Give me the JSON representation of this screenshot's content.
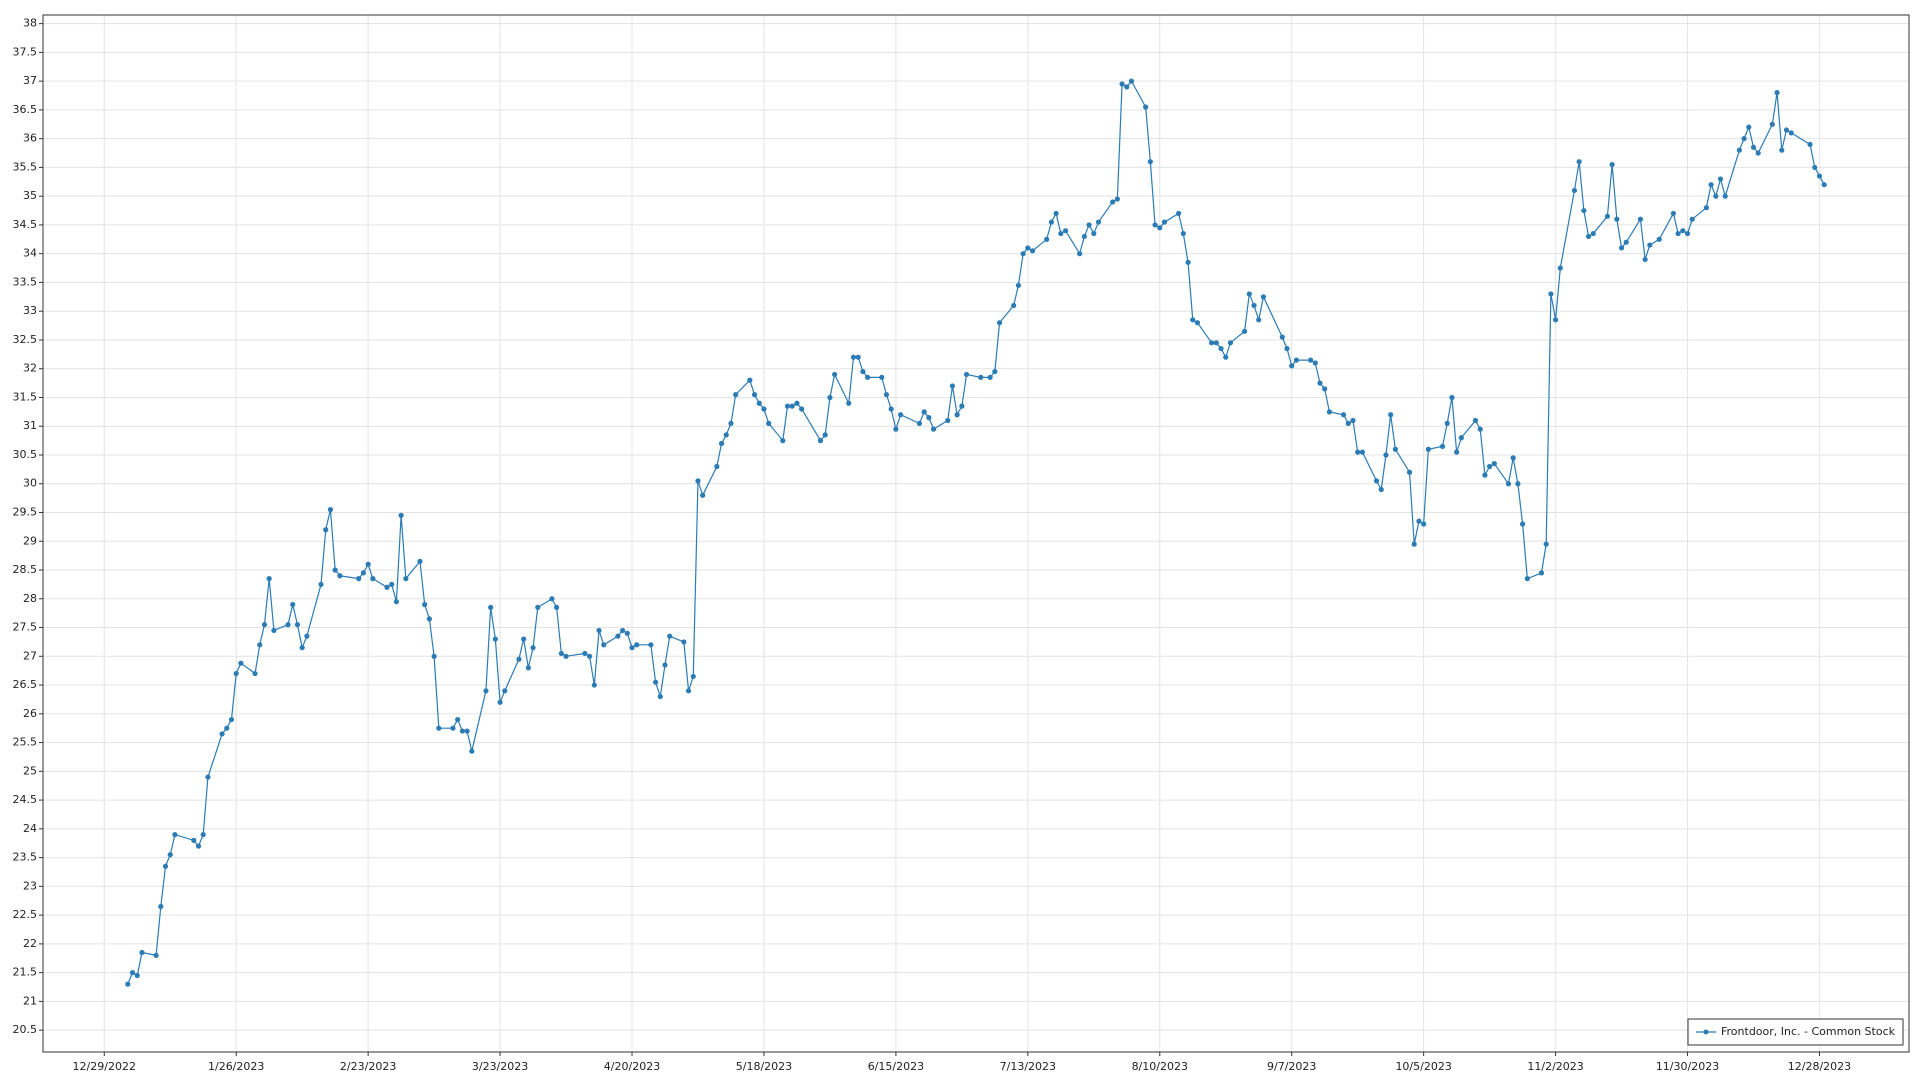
{
  "chart_data": {
    "type": "line",
    "x": [
      "1/3/2023",
      "1/4/2023",
      "1/5/2023",
      "1/6/2023",
      "1/9/2023",
      "1/10/2023",
      "1/11/2023",
      "1/12/2023",
      "1/13/2023",
      "1/17/2023",
      "1/18/2023",
      "1/19/2023",
      "1/20/2023",
      "1/23/2023",
      "1/24/2023",
      "1/25/2023",
      "1/26/2023",
      "1/27/2023",
      "1/30/2023",
      "1/31/2023",
      "2/1/2023",
      "2/2/2023",
      "2/3/2023",
      "2/6/2023",
      "2/7/2023",
      "2/8/2023",
      "2/9/2023",
      "2/10/2023",
      "2/13/2023",
      "2/14/2023",
      "2/15/2023",
      "2/16/2023",
      "2/17/2023",
      "2/21/2023",
      "2/22/2023",
      "2/23/2023",
      "2/24/2023",
      "2/27/2023",
      "2/28/2023",
      "3/1/2023",
      "3/2/2023",
      "3/3/2023",
      "3/6/2023",
      "3/7/2023",
      "3/8/2023",
      "3/9/2023",
      "3/10/2023",
      "3/13/2023",
      "3/14/2023",
      "3/15/2023",
      "3/16/2023",
      "3/17/2023",
      "3/20/2023",
      "3/21/2023",
      "3/22/2023",
      "3/23/2023",
      "3/24/2023",
      "3/27/2023",
      "3/28/2023",
      "3/29/2023",
      "3/30/2023",
      "3/31/2023",
      "4/3/2023",
      "4/4/2023",
      "4/5/2023",
      "4/6/2023",
      "4/10/2023",
      "4/11/2023",
      "4/12/2023",
      "4/13/2023",
      "4/14/2023",
      "4/17/2023",
      "4/18/2023",
      "4/19/2023",
      "4/20/2023",
      "4/21/2023",
      "4/24/2023",
      "4/25/2023",
      "4/26/2023",
      "4/27/2023",
      "4/28/2023",
      "5/1/2023",
      "5/2/2023",
      "5/3/2023",
      "5/4/2023",
      "5/5/2023",
      "5/8/2023",
      "5/9/2023",
      "5/10/2023",
      "5/11/2023",
      "5/12/2023",
      "5/15/2023",
      "5/16/2023",
      "5/17/2023",
      "5/18/2023",
      "5/19/2023",
      "5/22/2023",
      "5/23/2023",
      "5/24/2023",
      "5/25/2023",
      "5/26/2023",
      "5/30/2023",
      "5/31/2023",
      "6/1/2023",
      "6/2/2023",
      "6/5/2023",
      "6/6/2023",
      "6/7/2023",
      "6/8/2023",
      "6/9/2023",
      "6/12/2023",
      "6/13/2023",
      "6/14/2023",
      "6/15/2023",
      "6/16/2023",
      "6/20/2023",
      "6/21/2023",
      "6/22/2023",
      "6/23/2023",
      "6/26/2023",
      "6/27/2023",
      "6/28/2023",
      "6/29/2023",
      "6/30/2023",
      "7/3/2023",
      "7/5/2023",
      "7/6/2023",
      "7/7/2023",
      "7/10/2023",
      "7/11/2023",
      "7/12/2023",
      "7/13/2023",
      "7/14/2023",
      "7/17/2023",
      "7/18/2023",
      "7/19/2023",
      "7/20/2023",
      "7/21/2023",
      "7/24/2023",
      "7/25/2023",
      "7/26/2023",
      "7/27/2023",
      "7/28/2023",
      "7/31/2023",
      "8/1/2023",
      "8/2/2023",
      "8/3/2023",
      "8/4/2023",
      "8/7/2023",
      "8/8/2023",
      "8/9/2023",
      "8/10/2023",
      "8/11/2023",
      "8/14/2023",
      "8/15/2023",
      "8/16/2023",
      "8/17/2023",
      "8/18/2023",
      "8/21/2023",
      "8/22/2023",
      "8/23/2023",
      "8/24/2023",
      "8/25/2023",
      "8/28/2023",
      "8/29/2023",
      "8/30/2023",
      "8/31/2023",
      "9/1/2023",
      "9/5/2023",
      "9/6/2023",
      "9/7/2023",
      "9/8/2023",
      "9/11/2023",
      "9/12/2023",
      "9/13/2023",
      "9/14/2023",
      "9/15/2023",
      "9/18/2023",
      "9/19/2023",
      "9/20/2023",
      "9/21/2023",
      "9/22/2023",
      "9/25/2023",
      "9/26/2023",
      "9/27/2023",
      "9/28/2023",
      "9/29/2023",
      "10/2/2023",
      "10/3/2023",
      "10/4/2023",
      "10/5/2023",
      "10/6/2023",
      "10/9/2023",
      "10/10/2023",
      "10/11/2023",
      "10/12/2023",
      "10/13/2023",
      "10/16/2023",
      "10/17/2023",
      "10/18/2023",
      "10/19/2023",
      "10/20/2023",
      "10/23/2023",
      "10/24/2023",
      "10/25/2023",
      "10/26/2023",
      "10/27/2023",
      "10/30/2023",
      "10/31/2023",
      "11/1/2023",
      "11/2/2023",
      "11/3/2023",
      "11/6/2023",
      "11/7/2023",
      "11/8/2023",
      "11/9/2023",
      "11/10/2023",
      "11/13/2023",
      "11/14/2023",
      "11/15/2023",
      "11/16/2023",
      "11/17/2023",
      "11/20/2023",
      "11/21/2023",
      "11/22/2023",
      "11/24/2023",
      "11/27/2023",
      "11/28/2023",
      "11/29/2023",
      "11/30/2023",
      "12/1/2023",
      "12/4/2023",
      "12/5/2023",
      "12/6/2023",
      "12/7/2023",
      "12/8/2023",
      "12/11/2023",
      "12/12/2023",
      "12/13/2023",
      "12/14/2023",
      "12/15/2023",
      "12/18/2023",
      "12/19/2023",
      "12/20/2023",
      "12/21/2023",
      "12/22/2023",
      "12/26/2023",
      "12/27/2023",
      "12/28/2023",
      "12/29/2023"
    ],
    "series": [
      {
        "name": "Frontdoor, Inc. - Common Stock",
        "color": "#2b7bb5",
        "values": [
          21.3,
          21.5,
          21.45,
          21.85,
          21.8,
          22.65,
          23.35,
          23.55,
          23.9,
          23.8,
          23.7,
          23.9,
          24.9,
          25.65,
          25.75,
          25.9,
          26.7,
          26.88,
          26.7,
          27.2,
          27.55,
          28.35,
          27.45,
          27.55,
          27.9,
          27.55,
          27.15,
          27.35,
          28.25,
          29.2,
          29.55,
          28.5,
          28.4,
          28.35,
          28.45,
          28.6,
          28.35,
          28.2,
          28.25,
          27.95,
          29.45,
          28.35,
          28.65,
          27.9,
          27.65,
          27.0,
          25.75,
          25.75,
          25.9,
          25.7,
          25.7,
          25.35,
          26.4,
          27.85,
          27.3,
          26.2,
          26.4,
          26.95,
          27.3,
          26.8,
          27.15,
          27.85,
          28.0,
          27.85,
          27.05,
          27.0,
          27.05,
          27.0,
          26.5,
          27.45,
          27.2,
          27.35,
          27.45,
          27.4,
          27.15,
          27.2,
          27.2,
          26.55,
          26.3,
          26.85,
          27.35,
          27.25,
          26.4,
          26.65,
          30.05,
          29.8,
          30.3,
          30.7,
          30.85,
          31.05,
          31.55,
          31.8,
          31.55,
          31.4,
          31.3,
          31.05,
          30.75,
          31.35,
          31.35,
          31.4,
          31.3,
          30.75,
          30.85,
          31.5,
          31.9,
          31.4,
          32.2,
          32.2,
          31.95,
          31.85,
          31.85,
          31.55,
          31.3,
          30.95,
          31.2,
          31.05,
          31.25,
          31.15,
          30.95,
          31.1,
          31.7,
          31.2,
          31.35,
          31.9,
          31.85,
          31.85,
          31.95,
          32.8,
          33.1,
          33.45,
          34.0,
          34.1,
          34.05,
          34.25,
          34.55,
          34.7,
          34.35,
          34.4,
          34.0,
          34.3,
          34.5,
          34.35,
          34.55,
          34.9,
          34.95,
          36.95,
          36.9,
          37.0,
          36.55,
          35.6,
          34.5,
          34.45,
          34.55,
          34.7,
          34.35,
          33.85,
          32.85,
          32.8,
          32.45,
          32.45,
          32.35,
          32.2,
          32.45,
          32.65,
          33.3,
          33.1,
          32.85,
          33.25,
          32.55,
          32.35,
          32.05,
          32.15,
          32.15,
          32.1,
          31.75,
          31.65,
          31.25,
          31.2,
          31.05,
          31.1,
          30.55,
          30.55,
          30.05,
          29.9,
          30.5,
          31.2,
          30.6,
          30.2,
          28.95,
          29.35,
          29.3,
          30.6,
          30.65,
          31.05,
          31.5,
          30.55,
          30.8,
          31.1,
          30.95,
          30.15,
          30.3,
          30.35,
          30.0,
          30.45,
          30.0,
          29.3,
          28.35,
          28.45,
          28.95,
          33.3,
          32.85,
          33.75,
          35.1,
          35.6,
          34.75,
          34.3,
          34.35,
          34.65,
          35.55,
          34.6,
          34.1,
          34.2,
          34.6,
          33.9,
          34.15,
          34.25,
          34.7,
          34.35,
          34.4,
          34.35,
          34.6,
          34.8,
          35.2,
          35.0,
          35.3,
          35.0,
          35.8,
          36.0,
          36.2,
          35.85,
          35.75,
          36.25,
          36.8,
          35.8,
          36.15,
          36.1,
          35.9,
          35.5,
          35.35,
          35.2
        ]
      }
    ],
    "xlim": [
      "12/16/2022",
      "1/16/2024"
    ],
    "xticks": [
      "12/29/2022",
      "1/26/2023",
      "2/23/2023",
      "3/23/2023",
      "4/20/2023",
      "5/18/2023",
      "6/15/2023",
      "7/13/2023",
      "8/10/2023",
      "9/7/2023",
      "10/5/2023",
      "11/2/2023",
      "11/30/2023",
      "12/28/2023"
    ],
    "ylim": [
      20.12,
      38.15
    ],
    "yticks": [
      20.5,
      21,
      21.5,
      22,
      22.5,
      23,
      23.5,
      24,
      24.5,
      25,
      25.5,
      26,
      26.5,
      27,
      27.5,
      28,
      28.5,
      29,
      29.5,
      30,
      30.5,
      31,
      31.5,
      32,
      32.5,
      33,
      33.5,
      34,
      34.5,
      35,
      35.5,
      36,
      36.5,
      37,
      37.5,
      38
    ],
    "grid": true,
    "legend": "bottom-right"
  }
}
